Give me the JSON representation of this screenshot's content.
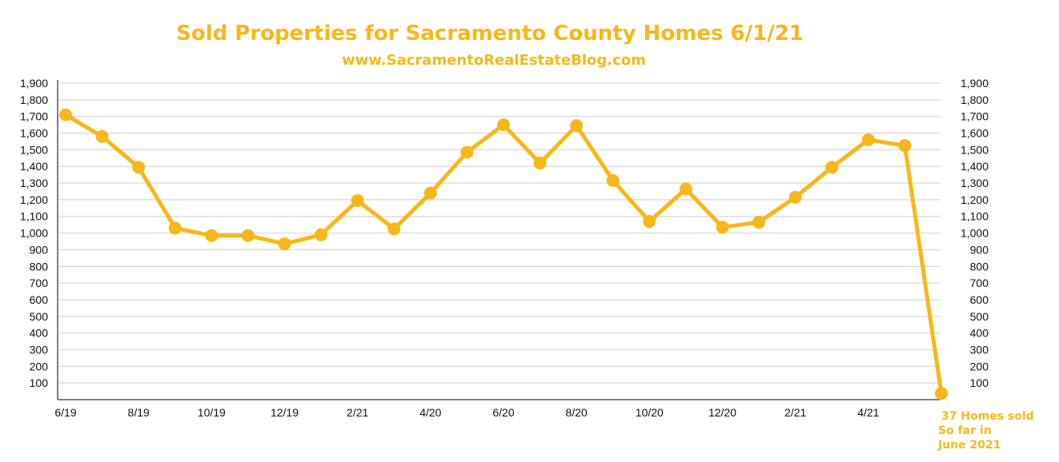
{
  "chart_data": {
    "type": "line",
    "title": "Sold Properties for Sacramento County Homes 6/1/21",
    "subtitle": "www.SacramentoRealEstateBlog.com",
    "xlabel": "",
    "ylabel": "",
    "x_tick_labels": [
      "6/19",
      "8/19",
      "10/19",
      "12/19",
      "2/21",
      "4/20",
      "6/20",
      "8/20",
      "10/20",
      "12/20",
      "2/21",
      "4/21"
    ],
    "y_tick_labels": [
      "100",
      "200",
      "300",
      "400",
      "500",
      "600",
      "700",
      "800",
      "900",
      "1,000",
      "1,100",
      "1,200",
      "1,300",
      "1,400",
      "1,500",
      "1,600",
      "1,700",
      "1,800",
      "1,900"
    ],
    "ylim": [
      0,
      1900
    ],
    "grid": true,
    "series": [
      {
        "values": [
          1710,
          1580,
          1395,
          1030,
          985,
          985,
          935,
          990,
          1195,
          1025,
          1240,
          1485,
          1650,
          1420,
          1645,
          1315,
          1070,
          1265,
          1035,
          1065,
          1215,
          1395,
          1560,
          1525,
          37
        ]
      }
    ],
    "annotation": {
      "lines": [
        "37 Homes sold",
        "So  far in",
        "June 2021"
      ]
    },
    "colors": {
      "line": "#F7B718",
      "title": "#F7B718",
      "grid": "#DDDDDD",
      "axis": "#555555"
    }
  }
}
